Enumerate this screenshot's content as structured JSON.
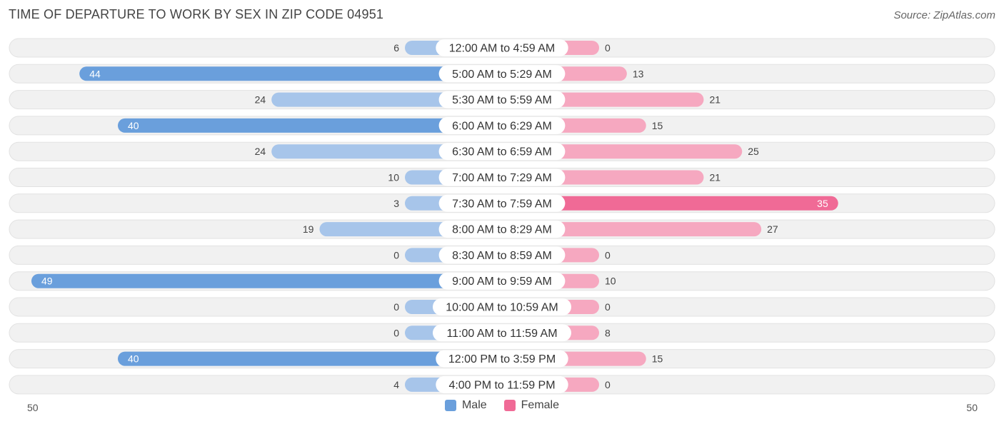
{
  "header": {
    "title": "TIME OF DEPARTURE TO WORK BY SEX IN ZIP CODE 04951",
    "source": "Source: ZipAtlas.com"
  },
  "colors": {
    "male_strong": "#6a9fdc",
    "male_light": "#a7c5ea",
    "female_strong": "#f06a96",
    "female_light": "#f6a8c0",
    "row_bg": "#f1f1f1",
    "row_border": "#e2e2e2"
  },
  "legend": {
    "male": "Male",
    "female": "Female"
  },
  "chart_data": {
    "type": "bar",
    "orientation": "horizontal-diverging",
    "categories": [
      "12:00 AM to 4:59 AM",
      "5:00 AM to 5:29 AM",
      "5:30 AM to 5:59 AM",
      "6:00 AM to 6:29 AM",
      "6:30 AM to 6:59 AM",
      "7:00 AM to 7:29 AM",
      "7:30 AM to 7:59 AM",
      "8:00 AM to 8:29 AM",
      "8:30 AM to 8:59 AM",
      "9:00 AM to 9:59 AM",
      "10:00 AM to 10:59 AM",
      "11:00 AM to 11:59 AM",
      "12:00 PM to 3:59 PM",
      "4:00 PM to 11:59 PM"
    ],
    "series": [
      {
        "name": "Male",
        "values": [
          6,
          44,
          24,
          40,
          24,
          10,
          3,
          19,
          0,
          49,
          0,
          0,
          40,
          4
        ]
      },
      {
        "name": "Female",
        "values": [
          0,
          13,
          21,
          15,
          25,
          21,
          35,
          27,
          0,
          10,
          0,
          8,
          15,
          0
        ]
      }
    ],
    "axis_left_label": "50",
    "axis_right_label": "50",
    "xlim": [
      -50,
      50
    ]
  }
}
